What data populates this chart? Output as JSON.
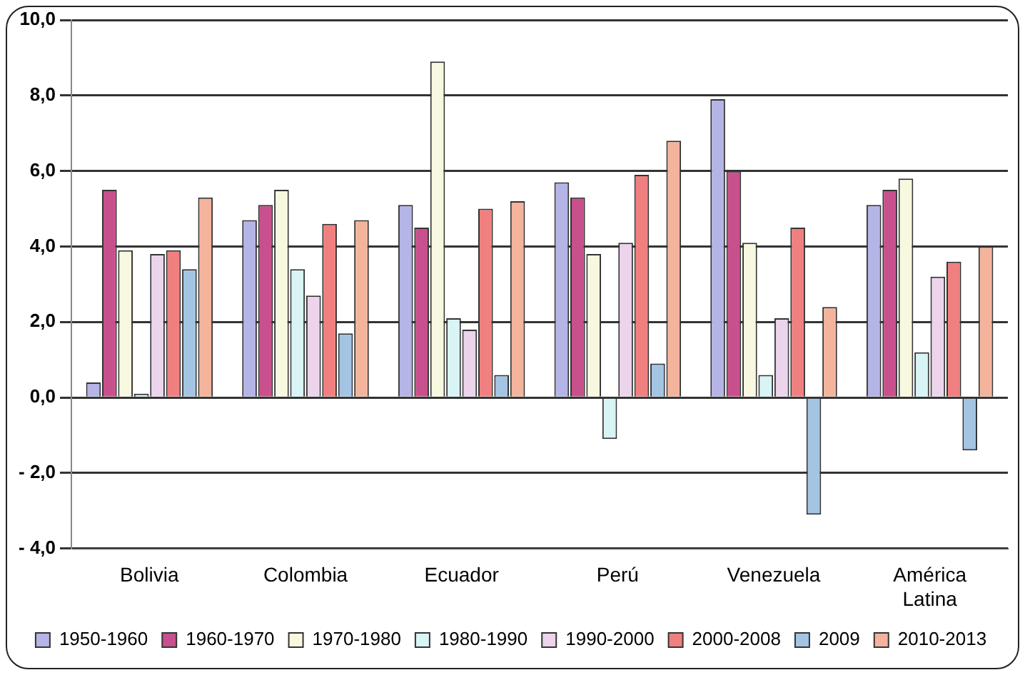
{
  "chart_data": {
    "type": "bar",
    "categories": [
      "Bolivia",
      "Colombia",
      "Ecuador",
      "Perú",
      "Venezuela",
      "América Latina"
    ],
    "series": [
      {
        "name": "1950-1960",
        "color": "#b4b4e6",
        "values": [
          0.4,
          4.7,
          5.1,
          5.7,
          7.9,
          5.1
        ]
      },
      {
        "name": "1960-1970",
        "color": "#c8508c",
        "values": [
          5.5,
          5.1,
          4.5,
          5.3,
          6.0,
          5.5
        ]
      },
      {
        "name": "1970-1980",
        "color": "#f8f8e0",
        "values": [
          3.9,
          5.5,
          8.9,
          3.8,
          4.1,
          5.8
        ]
      },
      {
        "name": "1980-1990",
        "color": "#d8f4f4",
        "values": [
          0.1,
          3.4,
          2.1,
          -1.1,
          0.6,
          1.2
        ]
      },
      {
        "name": "1990-2000",
        "color": "#ecd4ec",
        "values": [
          3.8,
          2.7,
          1.8,
          4.1,
          2.1,
          3.2
        ]
      },
      {
        "name": "2000-2008",
        "color": "#f08080",
        "values": [
          3.9,
          4.6,
          5.0,
          5.9,
          4.5,
          3.6
        ]
      },
      {
        "name": "2009",
        "color": "#a4c4e4",
        "values": [
          3.4,
          1.7,
          0.6,
          0.9,
          -3.1,
          -1.4
        ]
      },
      {
        "name": "2010-2013",
        "color": "#f4b49c",
        "values": [
          5.3,
          4.7,
          5.2,
          6.8,
          2.4,
          4.0
        ]
      }
    ],
    "ylim": [
      -4,
      10
    ],
    "yticks": [
      {
        "value": -4,
        "label": "- 4,0"
      },
      {
        "value": -2,
        "label": "- 2,0"
      },
      {
        "value": 0,
        "label": "0,0"
      },
      {
        "value": 2,
        "label": "2,0"
      },
      {
        "value": 4,
        "label": "4,0"
      },
      {
        "value": 6,
        "label": "6,0"
      },
      {
        "value": 8,
        "label": "8,0"
      },
      {
        "value": 10,
        "label": "10,0"
      }
    ],
    "grid": "y",
    "legend": "bottom"
  }
}
